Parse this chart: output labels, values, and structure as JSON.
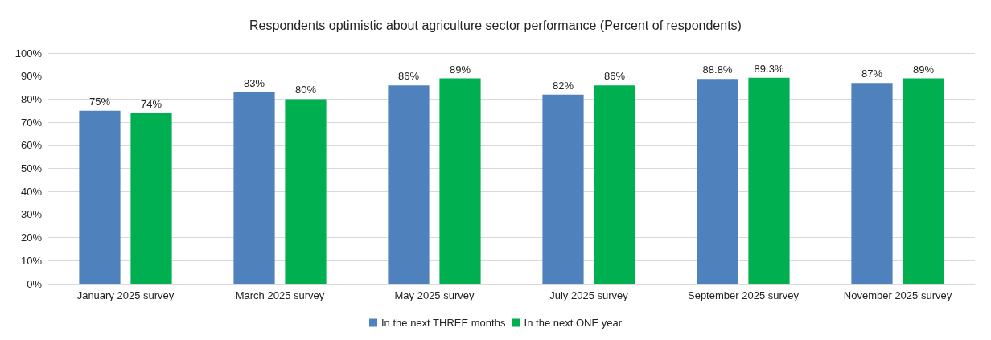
{
  "chart_data": {
    "type": "bar",
    "title": "Respondents optimistic about agriculture sector performance (Percent of respondents)",
    "categories": [
      "January 2025 survey",
      "March 2025 survey",
      "May 2025 survey",
      "July 2025 survey",
      "September 2025 survey",
      "November 2025 survey"
    ],
    "series": [
      {
        "name": "In the next THREE months",
        "color": "#4f81bd",
        "values": [
          75,
          83,
          86,
          82,
          88.8,
          87
        ],
        "value_labels": [
          "75%",
          "83%",
          "86%",
          "82%",
          "88.8%",
          "87%"
        ]
      },
      {
        "name": "In the next ONE year",
        "color": "#00b050",
        "values": [
          74,
          80,
          89,
          86,
          89.3,
          89
        ],
        "value_labels": [
          "74%",
          "80%",
          "89%",
          "86%",
          "89.3%",
          "89%"
        ]
      }
    ],
    "ylim": [
      0,
      100
    ],
    "yticks": [
      {
        "value": 0,
        "label": "0%"
      },
      {
        "value": 10,
        "label": "10%"
      },
      {
        "value": 20,
        "label": "20%"
      },
      {
        "value": 30,
        "label": "30%"
      },
      {
        "value": 40,
        "label": "40%"
      },
      {
        "value": 50,
        "label": "50%"
      },
      {
        "value": 60,
        "label": "60%"
      },
      {
        "value": 70,
        "label": "70%"
      },
      {
        "value": 80,
        "label": "80%"
      },
      {
        "value": 90,
        "label": "90%"
      },
      {
        "value": 100,
        "label": "100%"
      }
    ],
    "grid": "y",
    "legend": "bottom"
  }
}
